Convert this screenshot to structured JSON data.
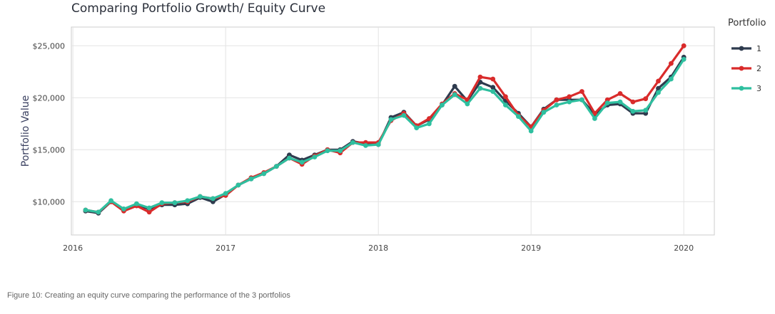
{
  "caption": "Figure 10: Creating an equity curve comparing the performance of the 3 portfolios",
  "chart_data": {
    "type": "line",
    "title": "Comparing Portfolio Growth/ Equity Curve",
    "xlabel": "",
    "ylabel": "Portfolio Value",
    "legend_title": "Portfolio",
    "legend_position": "right",
    "grid": true,
    "xlim": [
      2015.99,
      2020.2
    ],
    "ylim": [
      6800,
      26800
    ],
    "x_ticks": [
      2016,
      2017,
      2018,
      2019,
      2020
    ],
    "x_tick_labels": [
      "2016",
      "2017",
      "2018",
      "2019",
      "2020"
    ],
    "y_ticks": [
      10000,
      15000,
      20000,
      25000
    ],
    "y_tick_labels": [
      "$10,000",
      "$15,000",
      "$20,000",
      "$25,000"
    ],
    "colors": {
      "1": "#2e3b4e",
      "2": "#d92b2b",
      "3": "#2ebf9f"
    },
    "x": [
      2016.083,
      2016.167,
      2016.25,
      2016.333,
      2016.417,
      2016.5,
      2016.583,
      2016.667,
      2016.75,
      2016.833,
      2016.917,
      2017.0,
      2017.083,
      2017.167,
      2017.25,
      2017.333,
      2017.417,
      2017.5,
      2017.583,
      2017.667,
      2017.75,
      2017.833,
      2017.917,
      2018.0,
      2018.083,
      2018.167,
      2018.25,
      2018.333,
      2018.417,
      2018.5,
      2018.583,
      2018.667,
      2018.75,
      2018.833,
      2018.917,
      2019.0,
      2019.083,
      2019.167,
      2019.25,
      2019.333,
      2019.417,
      2019.5,
      2019.583,
      2019.667,
      2019.75,
      2019.833,
      2019.917,
      2020.0
    ],
    "series": [
      {
        "name": "1",
        "values": [
          9100,
          8900,
          10000,
          9300,
          9700,
          9300,
          9700,
          9700,
          9800,
          10400,
          10000,
          10700,
          11600,
          12200,
          12700,
          13400,
          14500,
          14000,
          14500,
          15000,
          15000,
          15800,
          15600,
          15500,
          18100,
          18600,
          17300,
          17900,
          19300,
          21100,
          19700,
          21500,
          21000,
          19700,
          18500,
          17200,
          18900,
          19800,
          19800,
          19800,
          18400,
          19300,
          19400,
          18500,
          18500,
          20900,
          22000,
          23900
        ]
      },
      {
        "name": "2",
        "values": [
          9200,
          9000,
          10000,
          9100,
          9600,
          9000,
          9800,
          9900,
          10000,
          10500,
          10300,
          10600,
          11600,
          12300,
          12800,
          13400,
          14200,
          13600,
          14400,
          15000,
          14700,
          15700,
          15700,
          15700,
          17800,
          18500,
          17300,
          18000,
          19400,
          20400,
          19800,
          22000,
          21800,
          20100,
          18300,
          17200,
          18800,
          19800,
          20100,
          20600,
          18500,
          19800,
          20400,
          19600,
          19900,
          21600,
          23300,
          25000
        ]
      },
      {
        "name": "3",
        "values": [
          9200,
          9000,
          10100,
          9300,
          9800,
          9400,
          9900,
          9900,
          10100,
          10500,
          10300,
          10800,
          11600,
          12200,
          12700,
          13400,
          14200,
          13800,
          14300,
          14900,
          14900,
          15700,
          15400,
          15500,
          17900,
          18300,
          17100,
          17500,
          19300,
          20300,
          19400,
          20900,
          20600,
          19300,
          18200,
          16800,
          18600,
          19300,
          19600,
          19800,
          18000,
          19500,
          19600,
          18700,
          18800,
          20500,
          21800,
          23700
        ]
      }
    ]
  }
}
